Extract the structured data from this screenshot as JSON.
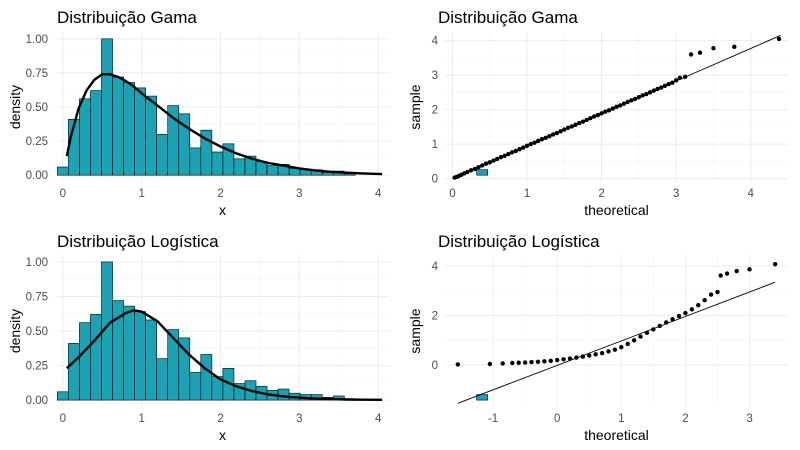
{
  "chart_data": [
    {
      "type": "bar",
      "title": "Distribuição Gama",
      "xlabel": "x",
      "ylabel": "density",
      "xlim": [
        -0.1,
        4.15
      ],
      "ylim": [
        -0.05,
        1.05
      ],
      "xticks": [
        0,
        1,
        2,
        3,
        4
      ],
      "yticks": [
        0.0,
        0.25,
        0.5,
        0.75,
        1.0
      ],
      "ytick_labels": [
        "0.00",
        "0.25",
        "0.50",
        "0.75",
        "1.00"
      ],
      "bin_start": -0.07,
      "bin_width": 0.14,
      "values": [
        0.06,
        0.41,
        0.56,
        0.62,
        1.0,
        0.72,
        0.68,
        0.64,
        0.58,
        0.3,
        0.51,
        0.45,
        0.2,
        0.33,
        0.17,
        0.23,
        0.12,
        0.14,
        0.1,
        0.07,
        0.08,
        0.05,
        0.04,
        0.04,
        0.02,
        0.03,
        0.01,
        0.0,
        0.0,
        0.0,
        0.0,
        0.0,
        0.0,
        0.0,
        0.0,
        0.0,
        0.0,
        0.0,
        0.04,
        0.0,
        0.0,
        0.0
      ],
      "bar_color": "#1aa3b4",
      "curve": {
        "x": [
          0.05,
          0.1,
          0.2,
          0.3,
          0.4,
          0.5,
          0.6,
          0.7,
          0.8,
          0.9,
          1.0,
          1.2,
          1.4,
          1.6,
          1.8,
          2.0,
          2.2,
          2.4,
          2.6,
          2.8,
          3.0,
          3.2,
          3.4,
          3.6,
          3.8,
          4.05
        ],
        "y": [
          0.14,
          0.28,
          0.49,
          0.62,
          0.7,
          0.74,
          0.74,
          0.72,
          0.69,
          0.65,
          0.6,
          0.51,
          0.42,
          0.34,
          0.27,
          0.21,
          0.16,
          0.12,
          0.09,
          0.07,
          0.05,
          0.035,
          0.025,
          0.018,
          0.013,
          0.008
        ]
      }
    },
    {
      "type": "scatter",
      "title": "Distribuição Gama",
      "xlabel": "theoretical",
      "ylabel": "sample",
      "xlim": [
        -0.1,
        4.5
      ],
      "ylim": [
        -0.1,
        4.25
      ],
      "xticks": [
        0,
        1,
        2,
        3,
        4
      ],
      "yticks": [
        0,
        1,
        2,
        3,
        4
      ],
      "line": {
        "x1": 0.0,
        "y1": 0.0,
        "x2": 4.4,
        "y2": 4.15
      },
      "points": [
        [
          0.03,
          0.03
        ],
        [
          0.06,
          0.05
        ],
        [
          0.09,
          0.08
        ],
        [
          0.12,
          0.11
        ],
        [
          0.16,
          0.15
        ],
        [
          0.2,
          0.19
        ],
        [
          0.25,
          0.24
        ],
        [
          0.3,
          0.28
        ],
        [
          0.35,
          0.33
        ],
        [
          0.4,
          0.38
        ],
        [
          0.45,
          0.43
        ],
        [
          0.5,
          0.47
        ],
        [
          0.55,
          0.52
        ],
        [
          0.6,
          0.57
        ],
        [
          0.65,
          0.62
        ],
        [
          0.7,
          0.66
        ],
        [
          0.75,
          0.71
        ],
        [
          0.8,
          0.76
        ],
        [
          0.85,
          0.8
        ],
        [
          0.9,
          0.85
        ],
        [
          0.95,
          0.9
        ],
        [
          1.0,
          0.95
        ],
        [
          1.05,
          1.0
        ],
        [
          1.1,
          1.04
        ],
        [
          1.15,
          1.09
        ],
        [
          1.2,
          1.14
        ],
        [
          1.25,
          1.18
        ],
        [
          1.3,
          1.23
        ],
        [
          1.35,
          1.28
        ],
        [
          1.4,
          1.32
        ],
        [
          1.45,
          1.37
        ],
        [
          1.5,
          1.42
        ],
        [
          1.55,
          1.47
        ],
        [
          1.6,
          1.51
        ],
        [
          1.65,
          1.56
        ],
        [
          1.7,
          1.61
        ],
        [
          1.75,
          1.65
        ],
        [
          1.8,
          1.7
        ],
        [
          1.85,
          1.75
        ],
        [
          1.9,
          1.8
        ],
        [
          1.95,
          1.84
        ],
        [
          2.0,
          1.89
        ],
        [
          2.05,
          1.94
        ],
        [
          2.1,
          1.98
        ],
        [
          2.15,
          2.03
        ],
        [
          2.2,
          2.08
        ],
        [
          2.25,
          2.12
        ],
        [
          2.3,
          2.17
        ],
        [
          2.35,
          2.22
        ],
        [
          2.4,
          2.27
        ],
        [
          2.45,
          2.31
        ],
        [
          2.5,
          2.36
        ],
        [
          2.55,
          2.41
        ],
        [
          2.6,
          2.45
        ],
        [
          2.65,
          2.5
        ],
        [
          2.7,
          2.55
        ],
        [
          2.75,
          2.6
        ],
        [
          2.8,
          2.64
        ],
        [
          2.85,
          2.69
        ],
        [
          2.9,
          2.74
        ],
        [
          2.95,
          2.78
        ],
        [
          3.0,
          2.85
        ],
        [
          3.05,
          2.92
        ],
        [
          3.12,
          2.95
        ],
        [
          3.2,
          3.6
        ],
        [
          3.32,
          3.65
        ],
        [
          3.5,
          3.78
        ],
        [
          3.78,
          3.82
        ],
        [
          4.38,
          4.05
        ]
      ]
    },
    {
      "type": "bar",
      "title": "Distribuição Logística",
      "xlabel": "x",
      "ylabel": "density",
      "xlim": [
        -0.1,
        4.15
      ],
      "ylim": [
        -0.05,
        1.05
      ],
      "xticks": [
        0,
        1,
        2,
        3,
        4
      ],
      "yticks": [
        0.0,
        0.25,
        0.5,
        0.75,
        1.0
      ],
      "ytick_labels": [
        "0.00",
        "0.25",
        "0.50",
        "0.75",
        "1.00"
      ],
      "bin_start": -0.07,
      "bin_width": 0.14,
      "values": [
        0.06,
        0.41,
        0.56,
        0.62,
        1.0,
        0.72,
        0.68,
        0.64,
        0.58,
        0.3,
        0.51,
        0.45,
        0.2,
        0.33,
        0.17,
        0.23,
        0.12,
        0.14,
        0.1,
        0.07,
        0.08,
        0.05,
        0.04,
        0.04,
        0.02,
        0.03,
        0.01,
        0.0,
        0.0,
        0.0,
        0.0,
        0.0,
        0.0,
        0.0,
        0.0,
        0.0,
        0.0,
        0.0,
        0.04,
        0.0,
        0.0,
        0.0
      ],
      "bar_color": "#1aa3b4",
      "curve": {
        "x": [
          0.05,
          0.2,
          0.4,
          0.6,
          0.8,
          0.9,
          1.0,
          1.2,
          1.4,
          1.6,
          1.8,
          2.0,
          2.2,
          2.4,
          2.6,
          2.8,
          3.0,
          3.2,
          3.4,
          3.6,
          3.8,
          4.05
        ],
        "y": [
          0.23,
          0.31,
          0.43,
          0.56,
          0.63,
          0.65,
          0.64,
          0.57,
          0.45,
          0.33,
          0.23,
          0.15,
          0.1,
          0.065,
          0.042,
          0.027,
          0.017,
          0.011,
          0.007,
          0.004,
          0.003,
          0.002
        ]
      }
    },
    {
      "type": "scatter",
      "title": "Distribuição Logística",
      "xlabel": "theoretical",
      "ylabel": "sample",
      "xlim": [
        -1.75,
        3.6
      ],
      "ylim": [
        -1.7,
        4.45
      ],
      "xticks": [
        -1,
        0,
        1,
        2,
        3
      ],
      "yticks": [
        0,
        2,
        4
      ],
      "line": {
        "x1": -1.55,
        "y1": -1.55,
        "x2": 3.4,
        "y2": 3.35
      },
      "points": [
        [
          -1.55,
          0.02
        ],
        [
          -1.05,
          0.04
        ],
        [
          -0.85,
          0.06
        ],
        [
          -0.7,
          0.08
        ],
        [
          -0.6,
          0.09
        ],
        [
          -0.5,
          0.1
        ],
        [
          -0.4,
          0.12
        ],
        [
          -0.3,
          0.13
        ],
        [
          -0.2,
          0.15
        ],
        [
          -0.1,
          0.17
        ],
        [
          0.0,
          0.2
        ],
        [
          0.1,
          0.23
        ],
        [
          0.2,
          0.26
        ],
        [
          0.3,
          0.3
        ],
        [
          0.4,
          0.34
        ],
        [
          0.5,
          0.38
        ],
        [
          0.6,
          0.43
        ],
        [
          0.7,
          0.48
        ],
        [
          0.8,
          0.55
        ],
        [
          0.9,
          0.62
        ],
        [
          1.0,
          0.72
        ],
        [
          1.1,
          0.85
        ],
        [
          1.2,
          1.0
        ],
        [
          1.3,
          1.15
        ],
        [
          1.4,
          1.3
        ],
        [
          1.5,
          1.44
        ],
        [
          1.6,
          1.58
        ],
        [
          1.7,
          1.72
        ],
        [
          1.8,
          1.85
        ],
        [
          1.9,
          1.98
        ],
        [
          2.0,
          2.1
        ],
        [
          2.1,
          2.25
        ],
        [
          2.2,
          2.42
        ],
        [
          2.3,
          2.62
        ],
        [
          2.4,
          2.85
        ],
        [
          2.5,
          2.95
        ],
        [
          2.55,
          3.62
        ],
        [
          2.65,
          3.7
        ],
        [
          2.8,
          3.8
        ],
        [
          3.0,
          3.87
        ],
        [
          3.4,
          4.08
        ]
      ]
    }
  ]
}
